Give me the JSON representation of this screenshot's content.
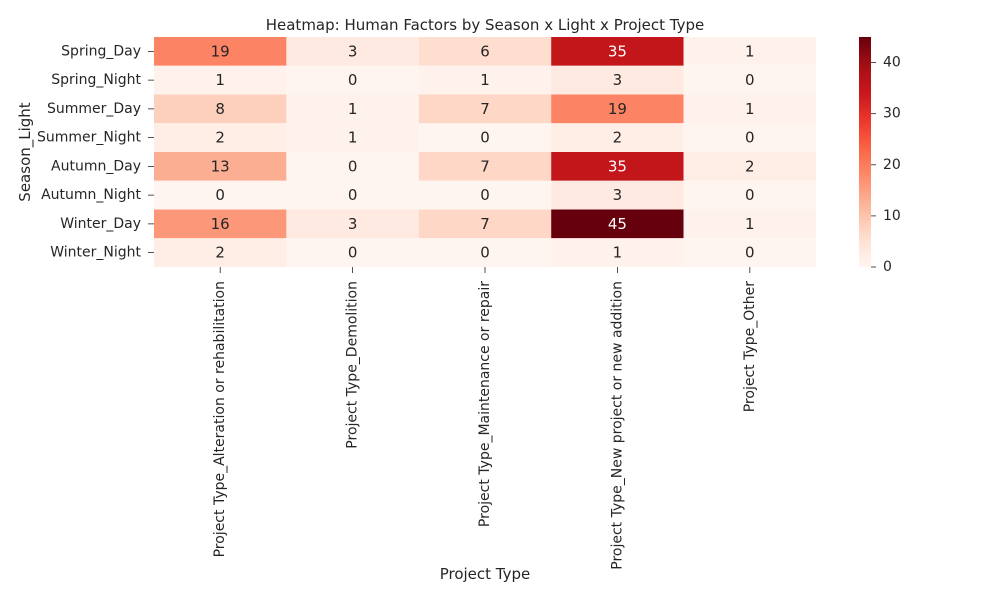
{
  "chart_data": {
    "type": "heatmap",
    "title": "Heatmap: Human Factors by Season x Light x Project Type",
    "xlabel": "Project Type",
    "ylabel": "Season_Light",
    "columns": [
      "Project Type_Alteration or rehabilitation",
      "Project Type_Demolition",
      "Project Type_Maintenance or repair",
      "Project Type_New project or new addition",
      "Project Type_Other"
    ],
    "rows": [
      "Spring_Day",
      "Spring_Night",
      "Summer_Day",
      "Summer_Night",
      "Autumn_Day",
      "Autumn_Night",
      "Winter_Day",
      "Winter_Night"
    ],
    "values": [
      [
        19,
        3,
        6,
        35,
        1
      ],
      [
        1,
        0,
        1,
        3,
        0
      ],
      [
        8,
        1,
        7,
        19,
        1
      ],
      [
        2,
        1,
        0,
        2,
        0
      ],
      [
        13,
        0,
        7,
        35,
        2
      ],
      [
        0,
        0,
        0,
        3,
        0
      ],
      [
        16,
        3,
        7,
        45,
        1
      ],
      [
        2,
        0,
        0,
        1,
        0
      ]
    ],
    "colormap": "Reds",
    "vmin": 0,
    "vmax": 45,
    "colorbar_ticks": [
      0,
      10,
      20,
      30,
      40
    ],
    "annotated": true
  }
}
